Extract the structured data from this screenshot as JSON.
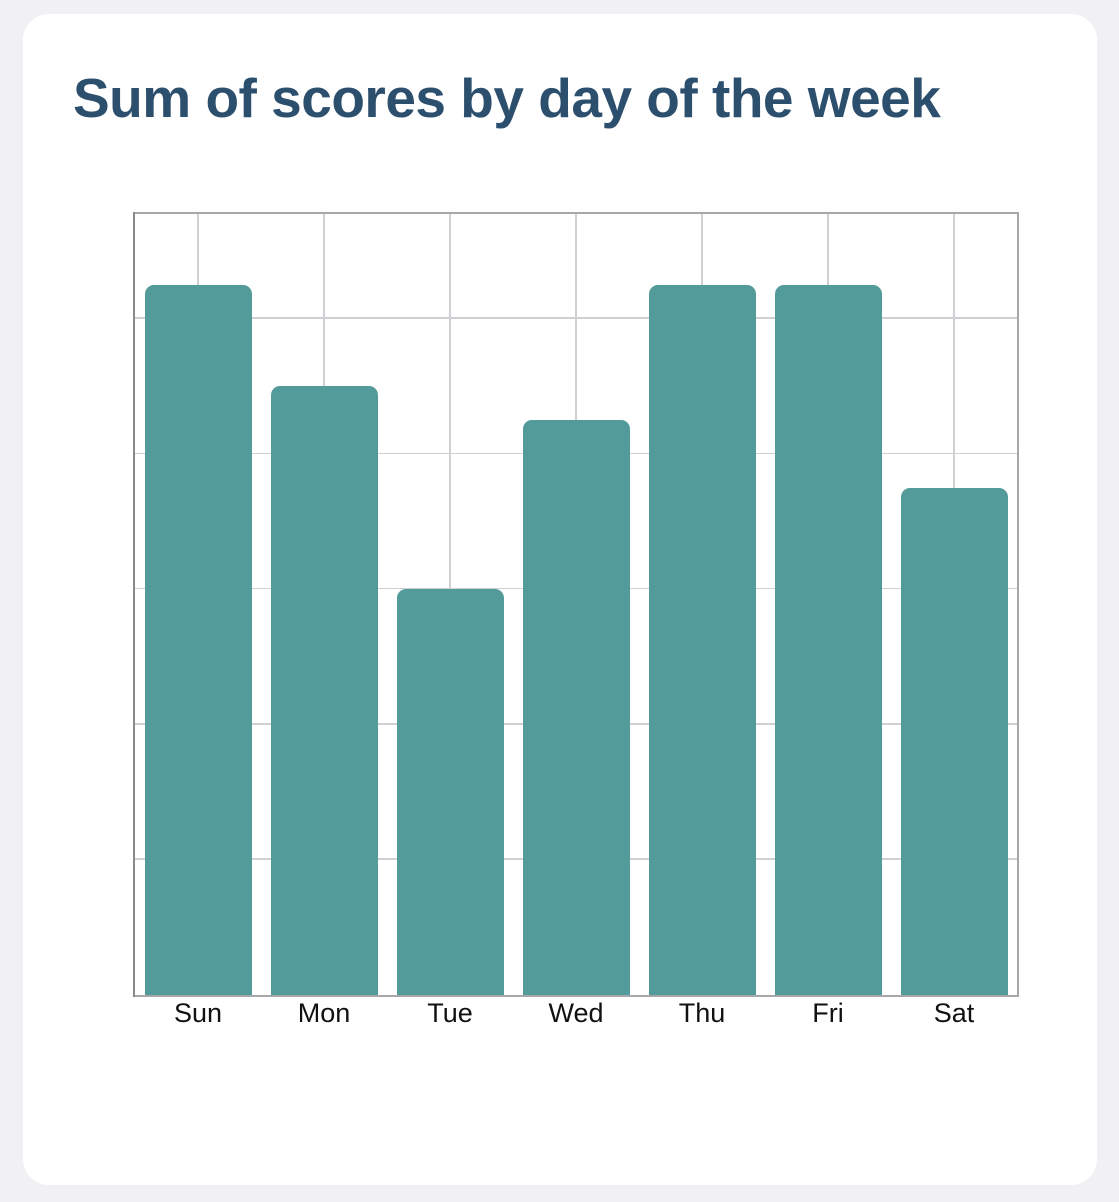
{
  "title": "Sum of scores by day of the week",
  "colors": {
    "bar": "#539b9a",
    "title": "#2d4f6e",
    "grid": "#d0d0d4",
    "frame": "#a8a8ac",
    "background": "#f0f0f5",
    "card": "#ffffff"
  },
  "chart_data": {
    "type": "bar",
    "title": "Sum of scores by day of the week",
    "xlabel": "",
    "ylabel": "",
    "categories": [
      "Sun",
      "Mon",
      "Tue",
      "Wed",
      "Thu",
      "Fri",
      "Sat"
    ],
    "values": [
      21,
      18,
      12,
      17,
      21,
      21,
      15
    ],
    "ylim": [
      0,
      23.1
    ],
    "y_gridlines": [
      4,
      8,
      12,
      16,
      20
    ],
    "y_tick_labels_visible": false,
    "grid": true,
    "legend": null
  }
}
